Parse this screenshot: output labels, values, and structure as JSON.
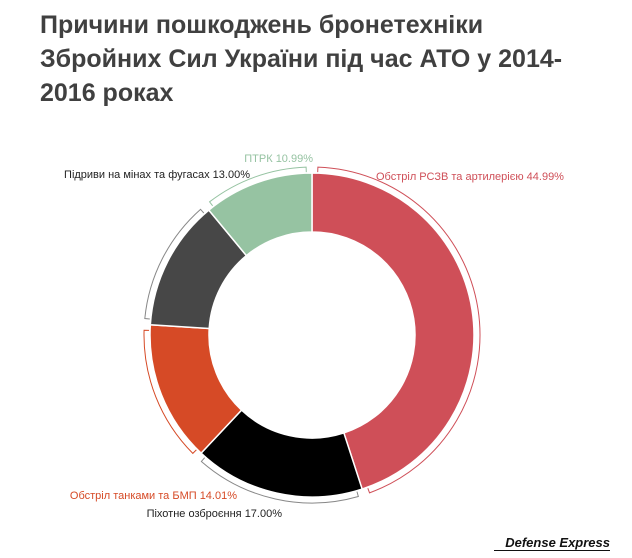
{
  "title": "Причини пошкоджень бронетехніки Збройних Сил України під час АТО у 2014-2016 роках",
  "brand": "Defense Express",
  "chart_data": {
    "type": "pie",
    "style": "donut",
    "slices": [
      {
        "label": "Обстріл РСЗВ та артилерією",
        "value": 44.99,
        "display": "44.99%",
        "color": "#cf4f58",
        "label_color": "#cf4f58"
      },
      {
        "label": "Піхотне озброєння",
        "value": 17.0,
        "display": "17.00%",
        "color": "#000000",
        "label_color": "#222222"
      },
      {
        "label": "Обстріл танками та БМП",
        "value": 14.01,
        "display": "14.01%",
        "color": "#d64a26",
        "label_color": "#d64a26"
      },
      {
        "label": "Підриви на мінах та фугасах",
        "value": 13.0,
        "display": "13.00%",
        "color": "#474747",
        "label_color": "#222222"
      },
      {
        "label": "ПТРК",
        "value": 10.99,
        "display": "10.99%",
        "color": "#96c3a2",
        "label_color": "#96c3a2"
      }
    ]
  }
}
